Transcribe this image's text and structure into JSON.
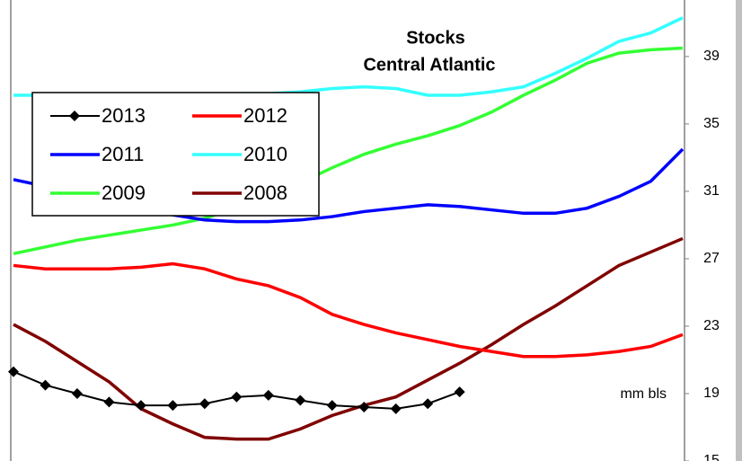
{
  "chart_data": {
    "type": "line",
    "title": "Stocks",
    "subtitle": "Central Atlantic",
    "annotation": "mm bls",
    "categories": [
      null,
      null,
      null,
      null,
      null,
      null,
      null,
      null,
      null,
      null,
      null,
      null,
      null,
      null,
      null,
      null,
      null,
      null,
      null,
      null,
      null,
      null
    ],
    "ylim": [
      15,
      41.5
    ],
    "yticks": [
      15,
      19,
      23,
      27,
      31,
      35,
      39
    ],
    "y_axis_side": "right",
    "grid": false,
    "legend": "upper left",
    "series": [
      {
        "name": "2013",
        "color": "#000000",
        "marker": "diamond",
        "values": [
          20.3,
          19.5,
          19.0,
          18.5,
          18.3,
          18.3,
          18.4,
          18.8,
          18.9,
          18.6,
          18.3,
          18.2,
          18.1,
          18.4,
          19.1,
          null,
          null,
          null,
          null,
          null,
          null,
          null
        ]
      },
      {
        "name": "2012",
        "color": "#ff0000",
        "values": [
          26.6,
          26.4,
          26.4,
          26.4,
          26.5,
          26.7,
          26.4,
          25.8,
          25.4,
          24.7,
          23.7,
          23.1,
          22.6,
          22.2,
          21.8,
          21.5,
          21.2,
          21.2,
          21.3,
          21.5,
          21.8,
          22.5
        ]
      },
      {
        "name": "2011",
        "color": "#0000ff",
        "values": [
          31.7,
          31.3,
          31.0,
          30.5,
          30.0,
          29.6,
          29.3,
          29.2,
          29.2,
          29.3,
          29.5,
          29.8,
          30.0,
          30.2,
          30.1,
          29.9,
          29.7,
          29.7,
          30.0,
          30.7,
          31.6,
          33.5
        ]
      },
      {
        "name": "2010",
        "color": "#33ffff",
        "values": [
          36.7,
          36.7,
          36.7,
          36.7,
          36.7,
          36.7,
          36.7,
          36.8,
          36.8,
          36.9,
          37.1,
          37.2,
          37.1,
          36.7,
          36.7,
          36.9,
          37.2,
          38.0,
          38.9,
          39.9,
          40.4,
          41.3
        ]
      },
      {
        "name": "2009",
        "color": "#33ff33",
        "values": [
          27.3,
          27.7,
          28.1,
          28.4,
          28.7,
          29.0,
          29.4,
          30.0,
          30.7,
          31.5,
          32.4,
          33.2,
          33.8,
          34.3,
          34.9,
          35.7,
          36.7,
          37.6,
          38.6,
          39.2,
          39.4,
          39.5
        ]
      },
      {
        "name": "2008",
        "color": "#800000",
        "values": [
          23.1,
          22.1,
          20.9,
          19.7,
          18.1,
          17.2,
          16.4,
          16.3,
          16.3,
          16.9,
          17.7,
          18.3,
          18.8,
          19.8,
          20.8,
          21.9,
          23.1,
          24.2,
          25.4,
          26.6,
          27.4,
          28.2
        ]
      }
    ]
  }
}
